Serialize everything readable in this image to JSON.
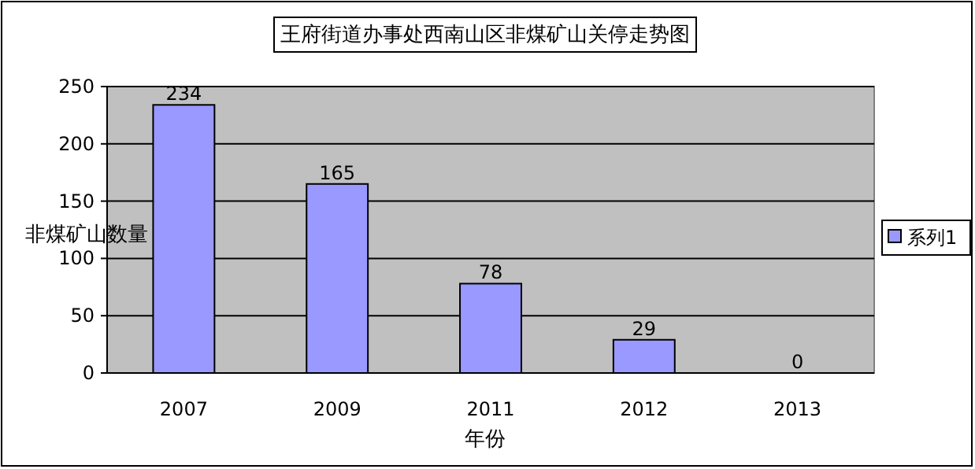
{
  "chart_data": {
    "type": "bar",
    "title": "王府街道办事处西南山区非煤矿山关停走势图",
    "xlabel": "年份",
    "ylabel": "非煤矿山数量",
    "categories": [
      "2007",
      "2009",
      "2011",
      "2012",
      "2013"
    ],
    "series": [
      {
        "name": "系列1",
        "color": "#9999ff",
        "values": [
          234,
          165,
          78,
          29,
          0
        ]
      }
    ],
    "ylim": [
      0,
      250
    ],
    "yticks": [
      0,
      50,
      100,
      150,
      200,
      250
    ],
    "grid": "y",
    "legend": "right",
    "data_labels": true
  }
}
